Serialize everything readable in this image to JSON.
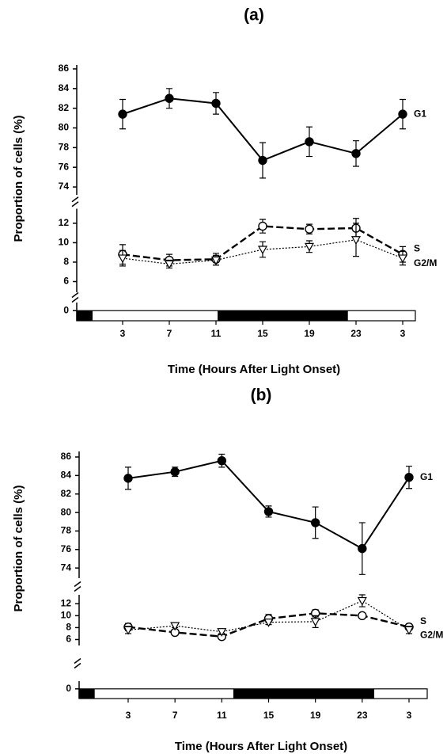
{
  "chart_data": [
    {
      "type": "line",
      "title": "(a)",
      "xlabel": "Time (Hours After Light Onset)",
      "ylabel": "Proportion of cells (%)",
      "categories": [
        "3",
        "7",
        "11",
        "15",
        "19",
        "23",
        "3"
      ],
      "y_segments": [
        {
          "ylim": [
            73.2,
            86.4
          ],
          "yticks": [
            74,
            76,
            78,
            80,
            82,
            84,
            86
          ]
        },
        {
          "ylim": [
            4.9,
            13.5
          ],
          "yticks": [
            6,
            8,
            10,
            12
          ]
        },
        {
          "ylim": [
            -1,
            0.8
          ],
          "yticks": [
            0
          ]
        }
      ],
      "series": [
        {
          "name": "G1",
          "color": "#000000",
          "marker": "filled-circle",
          "linestyle": "solid",
          "segment": 0,
          "values": [
            81.4,
            83.0,
            82.5,
            76.7,
            78.6,
            77.4,
            81.4
          ],
          "errors": [
            1.5,
            1.0,
            1.1,
            1.8,
            1.5,
            1.3,
            1.5
          ]
        },
        {
          "name": "S",
          "color": "#000000",
          "marker": "open-circle",
          "linestyle": "dashed",
          "segment": 1,
          "values": [
            8.8,
            8.2,
            8.3,
            11.7,
            11.4,
            11.5,
            8.8
          ],
          "errors": [
            1.0,
            0.6,
            0.6,
            0.7,
            0.5,
            1.0,
            0.8
          ]
        },
        {
          "name": "G2/M",
          "color": "#000000",
          "marker": "open-triangle",
          "linestyle": "dotted",
          "segment": 1,
          "values": [
            8.4,
            7.8,
            8.2,
            9.3,
            9.6,
            10.3,
            8.4
          ],
          "errors": [
            0.8,
            0.4,
            0.5,
            0.8,
            0.6,
            1.7,
            0.7
          ]
        }
      ]
    },
    {
      "type": "line",
      "title": "(b)",
      "xlabel": "Time (Hours After Light Onset)",
      "ylabel": "Proportion of cells (%)",
      "categories": [
        "3",
        "7",
        "11",
        "15",
        "19",
        "23",
        "3"
      ],
      "y_segments": [
        {
          "ylim": [
            72.9,
            86.6
          ],
          "yticks": [
            74,
            76,
            78,
            80,
            82,
            84,
            86
          ]
        },
        {
          "ylim": [
            5,
            13.5
          ],
          "yticks": [
            6,
            8,
            10,
            12
          ]
        },
        {
          "ylim": [
            -1,
            0.8
          ],
          "yticks": [
            0
          ]
        }
      ],
      "series": [
        {
          "name": "G1",
          "color": "#000000",
          "marker": "filled-circle",
          "linestyle": "solid",
          "segment": 0,
          "values": [
            83.7,
            84.4,
            85.6,
            80.1,
            78.9,
            76.1,
            83.8
          ],
          "errors": [
            1.2,
            0.5,
            0.7,
            0.6,
            1.7,
            2.8,
            1.2
          ]
        },
        {
          "name": "S",
          "color": "#000000",
          "marker": "open-circle",
          "linestyle": "dashed",
          "segment": 1,
          "values": [
            8.1,
            7.2,
            6.5,
            9.5,
            10.4,
            10.0,
            8.1
          ],
          "errors": [
            0.6,
            0.3,
            0.3,
            0.7,
            0.6,
            0.4,
            0.5
          ]
        },
        {
          "name": "G2/M",
          "color": "#000000",
          "marker": "open-triangle",
          "linestyle": "dotted",
          "segment": 1,
          "values": [
            7.6,
            8.3,
            7.3,
            8.9,
            9.0,
            12.5,
            7.6
          ],
          "errors": [
            0.6,
            0.3,
            0.5,
            0.4,
            1.0,
            1.0,
            0.6
          ]
        }
      ]
    }
  ]
}
